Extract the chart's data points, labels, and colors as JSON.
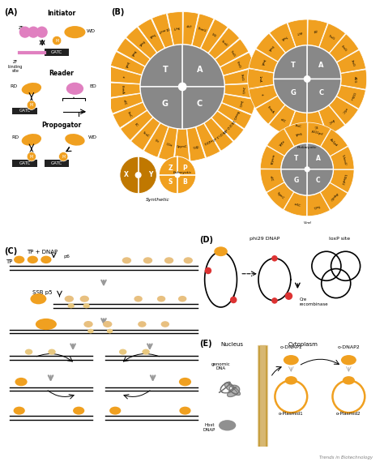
{
  "bg_color": "#ffffff",
  "orange": "#F0A020",
  "orange_light": "#F5B840",
  "gray_inner": "#888888",
  "pink": "#E080C0",
  "dark_orange": "#C07800",
  "tan_light": "#E8C080",
  "eukaryotic_labels": [
    "3mT",
    "O4-meT",
    "7mA",
    "6mA",
    "3mA",
    "1mA",
    "xi",
    "6hmA",
    "e3C",
    "3mC",
    "EC",
    "5caC",
    "5fc",
    "OGu",
    "CpymC",
    "CEG",
    "m22G",
    "1,N(2),3-eG",
    "1,N(2)2-eG",
    "8oxoG",
    "1mG",
    "2mG",
    "3mG",
    "6mG",
    "7mG",
    "5caU",
    "5fU",
    "5hmU",
    "dhT"
  ],
  "prokaryotic_labels": [
    "dhT",
    "7mA",
    "6mA",
    "3mA",
    "1mA",
    "xi",
    "6hmA",
    "e3C",
    "3mC",
    "EC",
    "4mC",
    "m5C",
    "OGSu",
    "ADG",
    "3mG",
    "6mG",
    "7mG",
    "gU"
  ],
  "viral_labels": [
    "6mA",
    "m2A",
    "ncm6A",
    "e3C",
    "5gmC",
    "m5C",
    "7mG",
    "dhpdU",
    "5-NedU",
    "5-heoU",
    "Au1pd",
    "pU11pd"
  ]
}
